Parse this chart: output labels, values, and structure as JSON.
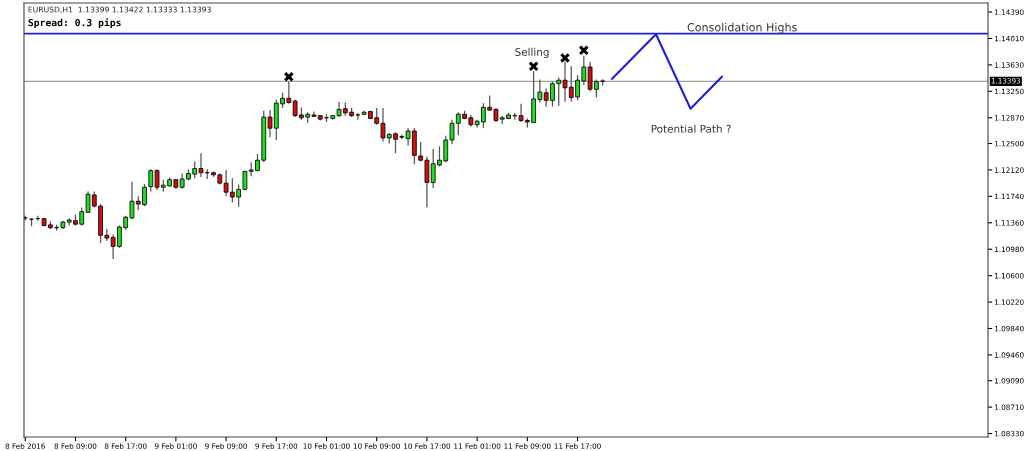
{
  "chart_data": {
    "type": "candlestick",
    "title": "EURUSD,H1  1.13399 1.13422 1.13333 1.13393",
    "subtitle": "Spread: 0.3 pips",
    "x": [
      "2016-02-08T01:00",
      "2016-02-08T02:00",
      "2016-02-08T03:00",
      "2016-02-08T04:00",
      "2016-02-08T05:00",
      "2016-02-08T06:00",
      "2016-02-08T07:00",
      "2016-02-08T08:00",
      "2016-02-08T09:00",
      "2016-02-08T10:00",
      "2016-02-08T11:00",
      "2016-02-08T12:00",
      "2016-02-08T13:00",
      "2016-02-08T14:00",
      "2016-02-08T15:00",
      "2016-02-08T16:00",
      "2016-02-08T17:00",
      "2016-02-08T18:00",
      "2016-02-08T19:00",
      "2016-02-08T20:00",
      "2016-02-08T21:00",
      "2016-02-08T22:00",
      "2016-02-08T23:00",
      "2016-02-09T00:00",
      "2016-02-09T01:00",
      "2016-02-09T02:00",
      "2016-02-09T03:00",
      "2016-02-09T04:00",
      "2016-02-09T05:00",
      "2016-02-09T06:00",
      "2016-02-09T07:00",
      "2016-02-09T08:00",
      "2016-02-09T09:00",
      "2016-02-09T10:00",
      "2016-02-09T11:00",
      "2016-02-09T12:00",
      "2016-02-09T13:00",
      "2016-02-09T14:00",
      "2016-02-09T15:00",
      "2016-02-09T16:00",
      "2016-02-09T17:00",
      "2016-02-09T18:00",
      "2016-02-09T19:00",
      "2016-02-09T20:00",
      "2016-02-09T21:00",
      "2016-02-09T22:00",
      "2016-02-09T23:00",
      "2016-02-10T00:00",
      "2016-02-10T01:00",
      "2016-02-10T02:00",
      "2016-02-10T03:00",
      "2016-02-10T04:00",
      "2016-02-10T05:00",
      "2016-02-10T06:00",
      "2016-02-10T07:00",
      "2016-02-10T08:00",
      "2016-02-10T09:00",
      "2016-02-10T10:00",
      "2016-02-10T11:00",
      "2016-02-10T12:00",
      "2016-02-10T13:00",
      "2016-02-10T14:00",
      "2016-02-10T15:00",
      "2016-02-10T16:00",
      "2016-02-10T17:00",
      "2016-02-10T18:00",
      "2016-02-10T19:00",
      "2016-02-10T20:00",
      "2016-02-10T21:00",
      "2016-02-10T22:00",
      "2016-02-10T23:00",
      "2016-02-11T00:00",
      "2016-02-11T01:00",
      "2016-02-11T02:00",
      "2016-02-11T03:00",
      "2016-02-11T04:00",
      "2016-02-11T05:00",
      "2016-02-11T06:00",
      "2016-02-11T07:00",
      "2016-02-11T08:00",
      "2016-02-11T09:00",
      "2016-02-11T10:00",
      "2016-02-11T11:00",
      "2016-02-11T12:00",
      "2016-02-11T13:00",
      "2016-02-11T14:00",
      "2016-02-11T15:00",
      "2016-02-11T16:00",
      "2016-02-11T17:00",
      "2016-02-11T18:00",
      "2016-02-11T19:00",
      "2016-02-11T20:00",
      "2016-02-11T21:00"
    ],
    "ohlc": [
      [
        1.1143,
        1.1146,
        1.1139,
        1.1143
      ],
      [
        1.1141,
        1.1143,
        1.1131,
        1.1141
      ],
      [
        1.1142,
        1.1146,
        1.1139,
        1.1142
      ],
      [
        1.1142,
        1.1143,
        1.1131,
        1.1132
      ],
      [
        1.1133,
        1.1138,
        1.1127,
        1.1129
      ],
      [
        1.1129,
        1.1133,
        1.1125,
        1.1129
      ],
      [
        1.1129,
        1.1139,
        1.1127,
        1.1137
      ],
      [
        1.1137,
        1.1142,
        1.1132,
        1.114
      ],
      [
        1.1139,
        1.1148,
        1.1132,
        1.1134
      ],
      [
        1.1134,
        1.1158,
        1.1132,
        1.1152
      ],
      [
        1.1151,
        1.1181,
        1.115,
        1.1177
      ],
      [
        1.1176,
        1.1181,
        1.1158,
        1.116
      ],
      [
        1.116,
        1.1163,
        1.1107,
        1.1118
      ],
      [
        1.1118,
        1.1127,
        1.111,
        1.1114
      ],
      [
        1.1115,
        1.1119,
        1.1084,
        1.1102
      ],
      [
        1.1102,
        1.1132,
        1.11,
        1.113
      ],
      [
        1.1129,
        1.1146,
        1.1126,
        1.1144
      ],
      [
        1.1143,
        1.1195,
        1.1141,
        1.1167
      ],
      [
        1.1167,
        1.1174,
        1.1154,
        1.1163
      ],
      [
        1.1162,
        1.1192,
        1.116,
        1.1187
      ],
      [
        1.1188,
        1.1213,
        1.1181,
        1.1211
      ],
      [
        1.1211,
        1.1213,
        1.1183,
        1.1187
      ],
      [
        1.1187,
        1.1198,
        1.1181,
        1.119
      ],
      [
        1.1189,
        1.1201,
        1.1188,
        1.1198
      ],
      [
        1.1198,
        1.1199,
        1.1185,
        1.1187
      ],
      [
        1.1187,
        1.1207,
        1.1185,
        1.1199
      ],
      [
        1.1199,
        1.1213,
        1.1197,
        1.1207
      ],
      [
        1.1206,
        1.1224,
        1.12,
        1.1214
      ],
      [
        1.1214,
        1.1236,
        1.1202,
        1.1208
      ],
      [
        1.1208,
        1.1213,
        1.1199,
        1.1208
      ],
      [
        1.1208,
        1.121,
        1.1202,
        1.1205
      ],
      [
        1.1205,
        1.1207,
        1.1191,
        1.1193
      ],
      [
        1.1193,
        1.1212,
        1.1174,
        1.118
      ],
      [
        1.118,
        1.12,
        1.1165,
        1.1173
      ],
      [
        1.1173,
        1.1191,
        1.1159,
        1.1184
      ],
      [
        1.1184,
        1.121,
        1.1183,
        1.121
      ],
      [
        1.121,
        1.1223,
        1.1203,
        1.1212
      ],
      [
        1.1211,
        1.1235,
        1.121,
        1.1226
      ],
      [
        1.1226,
        1.1297,
        1.1223,
        1.1288
      ],
      [
        1.1288,
        1.1298,
        1.1259,
        1.1272
      ],
      [
        1.1272,
        1.1313,
        1.1255,
        1.1308
      ],
      [
        1.1307,
        1.1323,
        1.1301,
        1.1315
      ],
      [
        1.1315,
        1.1339,
        1.1307,
        1.1309
      ],
      [
        1.1311,
        1.1313,
        1.1288,
        1.129
      ],
      [
        1.1291,
        1.1302,
        1.1284,
        1.1287
      ],
      [
        1.1288,
        1.1295,
        1.128,
        1.1292
      ],
      [
        1.1291,
        1.1296,
        1.1288,
        1.1289
      ],
      [
        1.129,
        1.1291,
        1.1283,
        1.1285
      ],
      [
        1.1287,
        1.1292,
        1.1281,
        1.1287
      ],
      [
        1.1286,
        1.1291,
        1.1284,
        1.129
      ],
      [
        1.129,
        1.131,
        1.1288,
        1.1299
      ],
      [
        1.13,
        1.1309,
        1.129,
        1.1294
      ],
      [
        1.1295,
        1.1301,
        1.1288,
        1.129
      ],
      [
        1.1291,
        1.1294,
        1.1284,
        1.1291
      ],
      [
        1.1292,
        1.1297,
        1.1291,
        1.1295
      ],
      [
        1.1296,
        1.1297,
        1.1285,
        1.1286
      ],
      [
        1.1287,
        1.1301,
        1.1277,
        1.1279
      ],
      [
        1.1279,
        1.1301,
        1.1253,
        1.1258
      ],
      [
        1.1258,
        1.1265,
        1.125,
        1.1263
      ],
      [
        1.1264,
        1.1266,
        1.1236,
        1.1256
      ],
      [
        1.1259,
        1.1263,
        1.1256,
        1.126
      ],
      [
        1.1257,
        1.1272,
        1.1247,
        1.1268
      ],
      [
        1.1268,
        1.1272,
        1.122,
        1.1233
      ],
      [
        1.1232,
        1.1252,
        1.1224,
        1.1226
      ],
      [
        1.1226,
        1.1231,
        1.1158,
        1.1194
      ],
      [
        1.1194,
        1.1242,
        1.1186,
        1.1221
      ],
      [
        1.1219,
        1.1246,
        1.1217,
        1.1226
      ],
      [
        1.1225,
        1.1261,
        1.1223,
        1.1255
      ],
      [
        1.1255,
        1.1284,
        1.1249,
        1.1279
      ],
      [
        1.1279,
        1.1295,
        1.1262,
        1.1292
      ],
      [
        1.1292,
        1.1297,
        1.1285,
        1.1286
      ],
      [
        1.1287,
        1.1291,
        1.1274,
        1.1277
      ],
      [
        1.1277,
        1.1284,
        1.1273,
        1.1282
      ],
      [
        1.1281,
        1.1308,
        1.1272,
        1.1302
      ],
      [
        1.1302,
        1.1319,
        1.1297,
        1.1298
      ],
      [
        1.1299,
        1.1301,
        1.1281,
        1.1283
      ],
      [
        1.1285,
        1.129,
        1.1278,
        1.1287
      ],
      [
        1.1286,
        1.1294,
        1.1285,
        1.1291
      ],
      [
        1.129,
        1.1294,
        1.1284,
        1.129
      ],
      [
        1.129,
        1.1307,
        1.1281,
        1.1283
      ],
      [
        1.1283,
        1.1286,
        1.1273,
        1.1281
      ],
      [
        1.128,
        1.1354,
        1.128,
        1.1314
      ],
      [
        1.1313,
        1.1342,
        1.1309,
        1.1324
      ],
      [
        1.1323,
        1.1329,
        1.1303,
        1.1312
      ],
      [
        1.1312,
        1.1339,
        1.1303,
        1.1336
      ],
      [
        1.1336,
        1.1345,
        1.1304,
        1.1341
      ],
      [
        1.1341,
        1.1368,
        1.131,
        1.133
      ],
      [
        1.1331,
        1.1361,
        1.131,
        1.1316
      ],
      [
        1.1317,
        1.1348,
        1.1312,
        1.1341
      ],
      [
        1.134,
        1.1376,
        1.1334,
        1.136
      ],
      [
        1.136,
        1.1367,
        1.1325,
        1.1328
      ],
      [
        1.1328,
        1.1342,
        1.1316,
        1.1339
      ],
      [
        1.13399,
        1.13422,
        1.13333,
        1.13393
      ]
    ],
    "colors": [
      "#000000",
      "#000000",
      "#000000",
      "#d01010",
      "#d01010",
      "#000000",
      "#22dd22",
      "#22dd22",
      "#d01010",
      "#22dd22",
      "#22dd22",
      "#d01010",
      "#d01010",
      "#d01010",
      "#d01010",
      "#22dd22",
      "#22dd22",
      "#22dd22",
      "#d01010",
      "#22dd22",
      "#22dd22",
      "#d01010",
      "#22dd22",
      "#22dd22",
      "#d01010",
      "#22dd22",
      "#22dd22",
      "#22dd22",
      "#d01010",
      "#000000",
      "#d01010",
      "#d01010",
      "#d01010",
      "#d01010",
      "#22dd22",
      "#22dd22",
      "#22dd22",
      "#22dd22",
      "#22dd22",
      "#d01010",
      "#22dd22",
      "#22dd22",
      "#d01010",
      "#d01010",
      "#d01010",
      "#22dd22",
      "#d01010",
      "#d01010",
      "#000000",
      "#22dd22",
      "#22dd22",
      "#d01010",
      "#d01010",
      "#000000",
      "#22dd22",
      "#d01010",
      "#d01010",
      "#d01010",
      "#22dd22",
      "#d01010",
      "#22dd22",
      "#22dd22",
      "#d01010",
      "#d01010",
      "#d01010",
      "#22dd22",
      "#22dd22",
      "#22dd22",
      "#22dd22",
      "#22dd22",
      "#d01010",
      "#d01010",
      "#22dd22",
      "#22dd22",
      "#d01010",
      "#d01010",
      "#22dd22",
      "#22dd22",
      "#000000",
      "#d01010",
      "#d01010",
      "#22dd22",
      "#22dd22",
      "#d01010",
      "#22dd22",
      "#22dd22",
      "#d01010",
      "#d01010",
      "#22dd22",
      "#22dd22",
      "#d01010",
      "#22dd22",
      "#000000"
    ],
    "series": [
      {
        "type": "line",
        "color": "#2020d0",
        "x": [
          "2016-02-11T22:30",
          "2016-02-12T05:30",
          "2016-02-12T11:00",
          "2016-02-12T16:00"
        ],
        "values": [
          1.1343,
          1.1407,
          1.13,
          1.1346
        ]
      },
      {
        "type": "scatter",
        "color": "#000000",
        "marker": "cross",
        "x": [
          "2016-02-09T19:00",
          "2016-02-11T10:00",
          "2016-02-11T15:00",
          "2016-02-11T18:00"
        ],
        "values": [
          1.1346,
          1.1361,
          1.1373,
          1.1384
        ]
      }
    ],
    "xlim": [
      "2016-02-08T00:48",
      "2016-02-14T10:24"
    ],
    "ylim": [
      1.0828,
      1.1452
    ],
    "xticks": [
      {
        "value": "2016-02-08T01:00",
        "label": "8 Feb 2016"
      },
      {
        "value": "2016-02-08T09:00",
        "label": "8 Feb 09:00"
      },
      {
        "value": "2016-02-08T17:00",
        "label": "8 Feb 17:00"
      },
      {
        "value": "2016-02-09T01:00",
        "label": "9 Feb 01:00"
      },
      {
        "value": "2016-02-09T09:00",
        "label": "9 Feb 09:00"
      },
      {
        "value": "2016-02-09T17:00",
        "label": "9 Feb 17:00"
      },
      {
        "value": "2016-02-10T01:00",
        "label": "10 Feb 01:00"
      },
      {
        "value": "2016-02-10T09:00",
        "label": "10 Feb 09:00"
      },
      {
        "value": "2016-02-10T17:00",
        "label": "10 Feb 17:00"
      },
      {
        "value": "2016-02-11T01:00",
        "label": "11 Feb 01:00"
      },
      {
        "value": "2016-02-11T09:00",
        "label": "11 Feb 09:00"
      },
      {
        "value": "2016-02-11T17:00",
        "label": "11 Feb 17:00"
      }
    ],
    "yticks": [
      {
        "value": 1.1439,
        "label": "1.14390"
      },
      {
        "value": 1.1401,
        "label": "1.14010"
      },
      {
        "value": 1.1363,
        "label": "1.13630"
      },
      {
        "value": 1.1325,
        "label": "1.13250"
      },
      {
        "value": 1.1287,
        "label": "1.12870"
      },
      {
        "value": 1.125,
        "label": "1.12500"
      },
      {
        "value": 1.1212,
        "label": "1.12120"
      },
      {
        "value": 1.1174,
        "label": "1.11740"
      },
      {
        "value": 1.1136,
        "label": "1.11360"
      },
      {
        "value": 1.1098,
        "label": "1.10980"
      },
      {
        "value": 1.106,
        "label": "1.10600"
      },
      {
        "value": 1.1022,
        "label": "1.10220"
      },
      {
        "value": 1.0984,
        "label": "1.09840"
      },
      {
        "value": 1.0946,
        "label": "1.09460"
      },
      {
        "value": 1.0909,
        "label": "1.09090"
      },
      {
        "value": 1.0871,
        "label": "1.08710"
      },
      {
        "value": 1.0833,
        "label": "1.08330"
      }
    ],
    "ref_lines": [
      {
        "axis": "y",
        "value": 1.1408,
        "label": "Consolidation Highs",
        "color": "#2020d0"
      },
      {
        "axis": "y",
        "value": 1.13393,
        "label": "1.13393",
        "color": "#a0a0a0"
      }
    ],
    "annotations": [
      "Selling",
      "Potential Path ?"
    ],
    "grid": false,
    "legend": false
  }
}
